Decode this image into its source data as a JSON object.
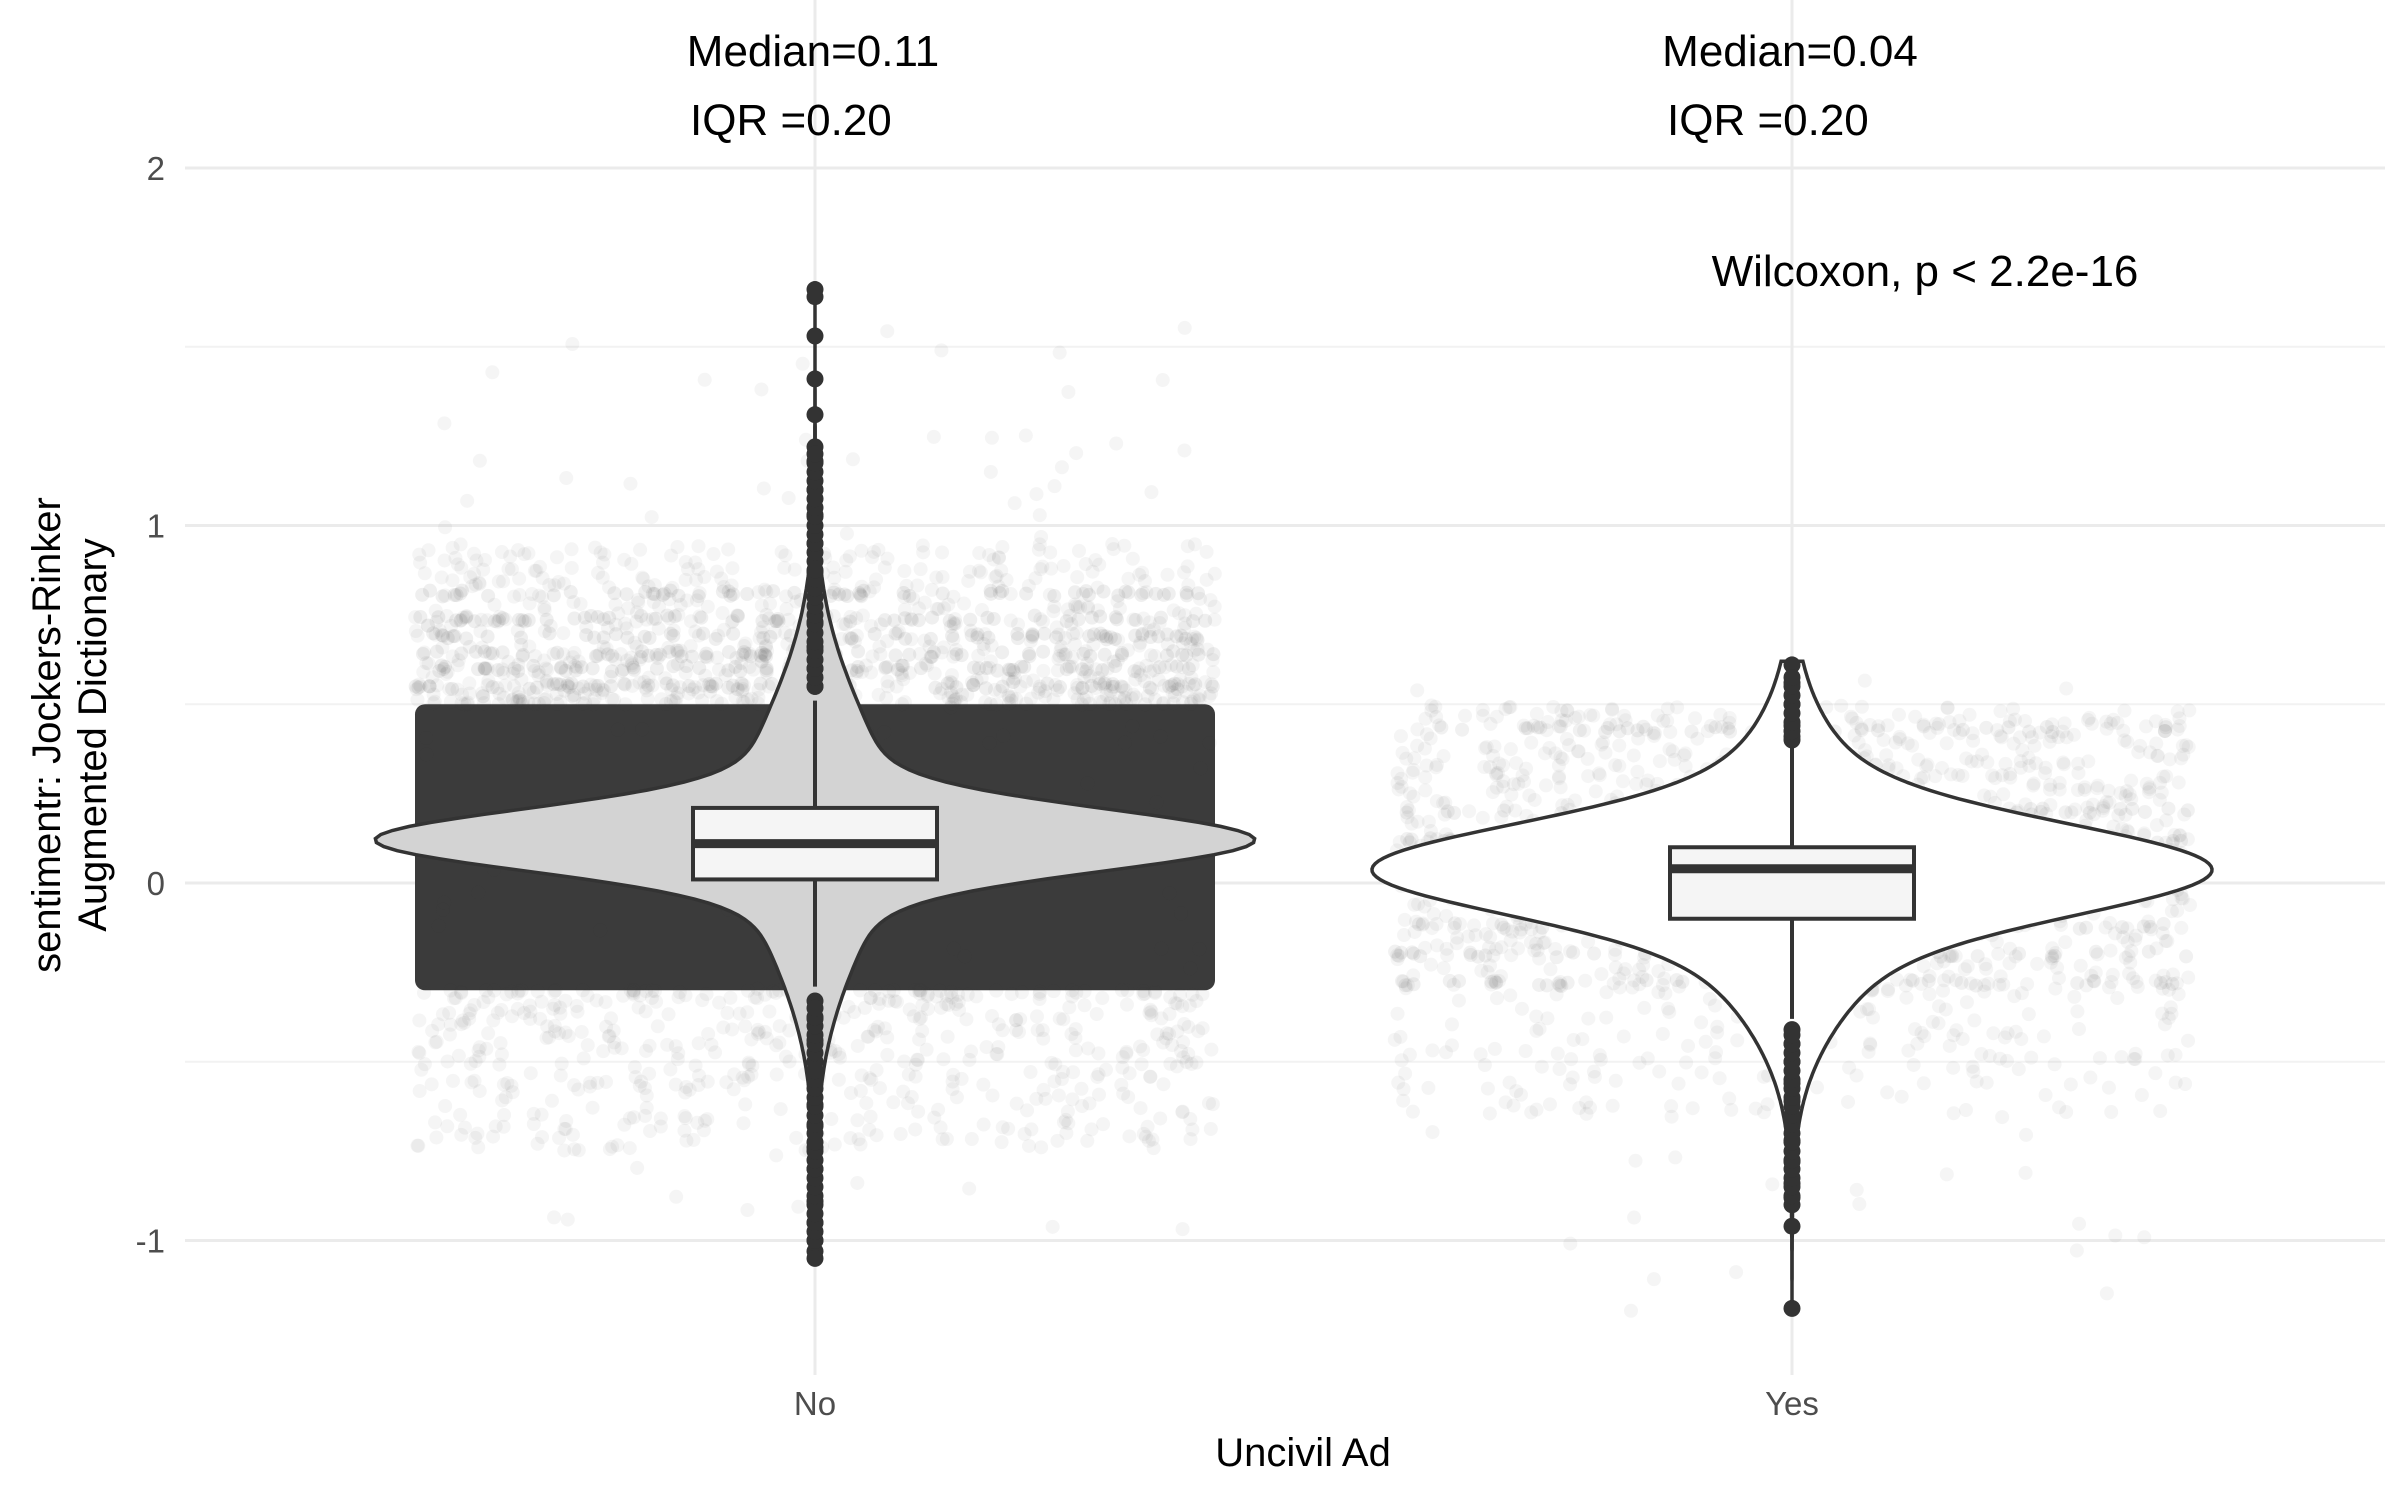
{
  "chart_data": {
    "type": "violin",
    "xlabel": "Uncivil Ad",
    "ylabel": [
      "sentimentr: Jockers-Rinker",
      "Augmented Dictionary"
    ],
    "ylim": [
      -1.35,
      2.05
    ],
    "y_ticks": [
      -1,
      0,
      1,
      2
    ],
    "y_tick_labels": [
      "-1",
      "0",
      "1",
      "2"
    ],
    "categories": [
      "No",
      "Yes"
    ],
    "grid": true,
    "groups": [
      {
        "category": "No",
        "median": 0.11,
        "q1": 0.01,
        "q3": 0.21,
        "whisker_low": -0.29,
        "whisker_high": 0.51,
        "jitter_range": [
          -0.3,
          0.5
        ],
        "jitter_density": "very dense",
        "outliers": [
          1.66,
          1.64,
          1.53,
          1.41,
          1.31,
          1.22,
          1.18,
          1.1,
          1.03,
          0.95,
          0.87,
          0.8,
          0.73,
          0.66,
          0.6,
          0.55,
          -0.33,
          -0.38,
          -0.44,
          -0.5,
          -0.56,
          -0.62,
          -0.68,
          -0.74,
          -0.8,
          -0.89,
          -0.95,
          -1.0,
          -1.03,
          -1.05
        ],
        "violin_fill": "#d3d3d3",
        "annotation_median": "Median=0.11",
        "annotation_iqr": "IQR    =0.20"
      },
      {
        "category": "Yes",
        "median": 0.04,
        "q1": -0.1,
        "q3": 0.1,
        "whisker_low": -0.38,
        "whisker_high": 0.39,
        "jitter_range": [
          -0.65,
          0.55
        ],
        "jitter_density": "sparse",
        "outliers": [
          0.61,
          0.56,
          0.5,
          0.44,
          0.41,
          -0.41,
          -0.45,
          -0.5,
          -0.56,
          -0.61,
          -0.66,
          -0.72,
          -0.78,
          -0.84,
          -0.88,
          -0.96,
          -1.19
        ],
        "violin_fill": "#ffffff",
        "annotation_median": "Median=0.04",
        "annotation_iqr": "IQR    =0.20"
      }
    ],
    "test_label": "Wilcoxon, p < 2.2e-16",
    "colors": {
      "dark": "#333333",
      "grid": "#ebebeb",
      "box_fill": "#f5f5f5"
    }
  }
}
